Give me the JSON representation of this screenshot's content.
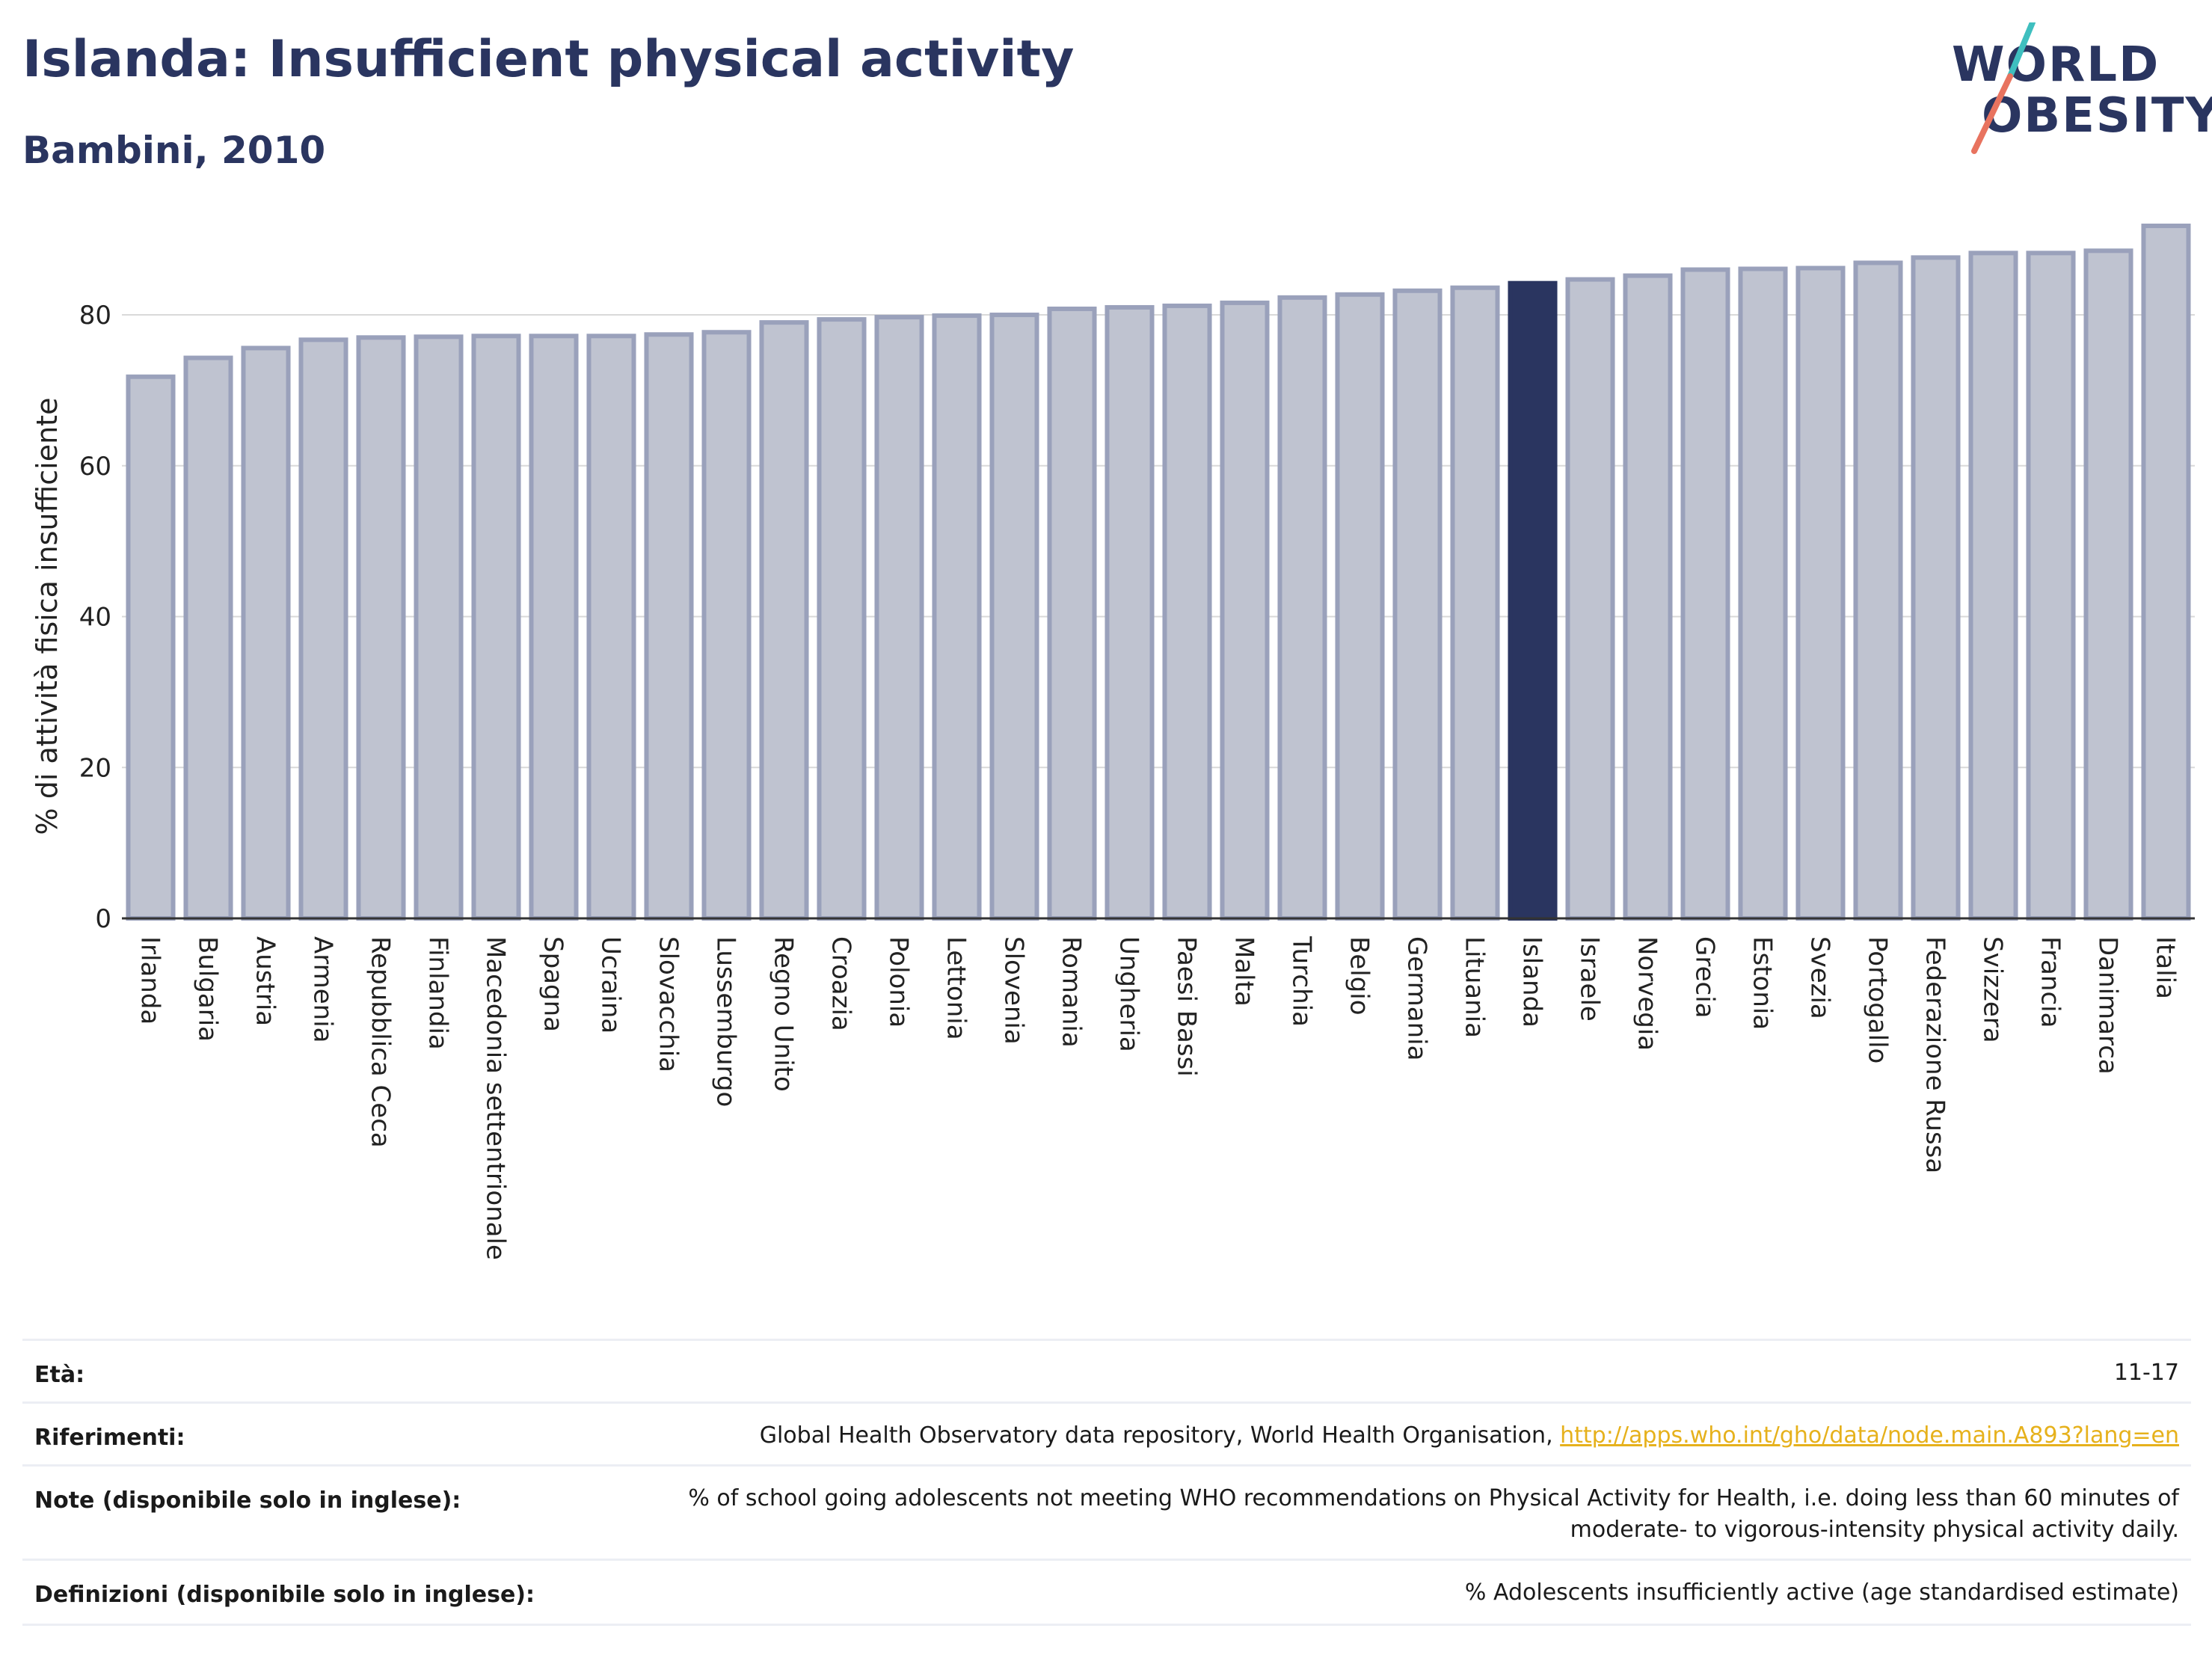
{
  "header": {
    "title": "Islanda: Insufficient physical activity",
    "subtitle": "Bambini, 2010"
  },
  "logo": {
    "line1": "WORLD",
    "line2": "OBESITY",
    "colors": {
      "teal": "#3fbfbf",
      "coral": "#e8735f",
      "navy": "#2a3560"
    }
  },
  "colors": {
    "bar": "#bfc3d0",
    "bar_border": "#9aa1bb",
    "highlight": "#2a3560",
    "axis": "#333333",
    "grid": "#d9d9d9"
  },
  "chart_data": {
    "type": "bar",
    "ylabel": "% di attività fisica insufficiente",
    "ylim": [
      0,
      92
    ],
    "yticks": [
      0,
      20,
      40,
      60,
      80
    ],
    "highlight": "Islanda",
    "categories": [
      "Irlanda",
      "Bulgaria",
      "Austria",
      "Armenia",
      "Repubblica Ceca",
      "Finlandia",
      "Macedonia settentrionale",
      "Spagna",
      "Ucraina",
      "Slovacchia",
      "Lussemburgo",
      "Regno Unito",
      "Croazia",
      "Polonia",
      "Lettonia",
      "Slovenia",
      "Romania",
      "Ungheria",
      "Paesi Bassi",
      "Malta",
      "Turchia",
      "Belgio",
      "Germania",
      "Lituania",
      "Islanda",
      "Israele",
      "Norvegia",
      "Grecia",
      "Estonia",
      "Svezia",
      "Portogallo",
      "Federazione Russa",
      "Svizzera",
      "Francia",
      "Danimarca",
      "Italia"
    ],
    "values": [
      71.8,
      74.3,
      75.6,
      76.7,
      77.0,
      77.1,
      77.2,
      77.2,
      77.2,
      77.4,
      77.7,
      79.0,
      79.4,
      79.7,
      79.9,
      80.0,
      80.8,
      81.0,
      81.2,
      81.6,
      82.3,
      82.7,
      83.2,
      83.6,
      84.2,
      84.7,
      85.2,
      86.0,
      86.1,
      86.2,
      86.9,
      87.6,
      88.2,
      88.2,
      88.5,
      91.8
    ],
    "grid": true,
    "legend": "none"
  },
  "footer": {
    "rows": [
      {
        "label": "Età:",
        "value": "11-17"
      },
      {
        "label": "Riferimenti:",
        "value": "Global Health Observatory data repository, World Health Organisation, ",
        "link": "http://apps.who.int/gho/data/node.main.A893?lang=en"
      },
      {
        "label": "Note (disponibile solo in inglese):",
        "value": "% of school going adolescents not meeting WHO recommendations on Physical Activity for Health, i.e. doing less than 60 minutes of moderate- to vigorous-intensity physical activity daily."
      },
      {
        "label": "Definizioni (disponibile solo in inglese):",
        "value": "% Adolescents insufficiently active (age standardised estimate)"
      }
    ]
  }
}
